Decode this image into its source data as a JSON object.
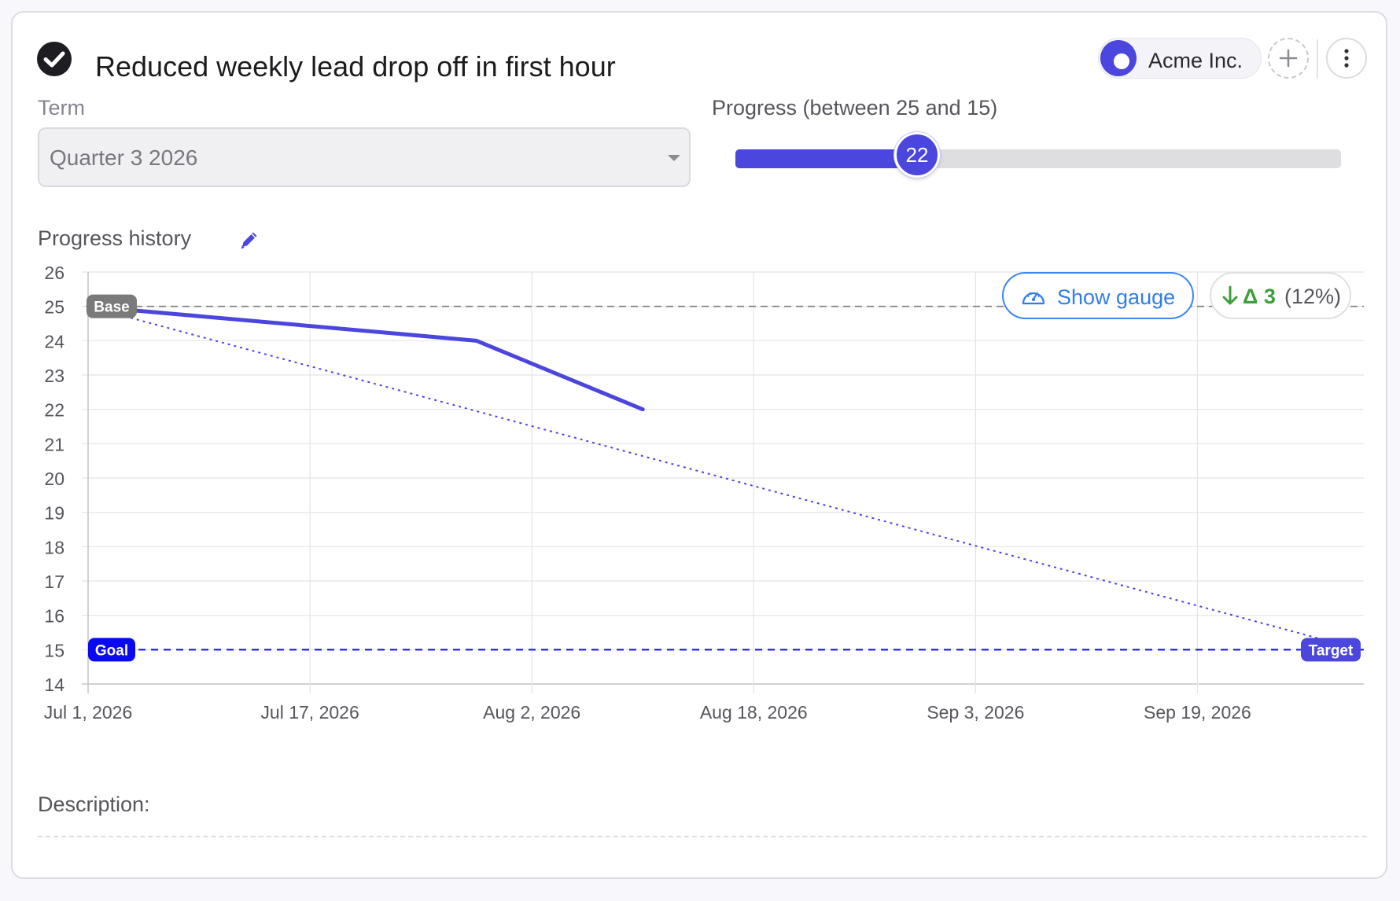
{
  "header": {
    "title": "Reduced weekly lead drop off in first hour",
    "org_name": "Acme Inc."
  },
  "term": {
    "label": "Term",
    "value": "Quarter 3 2026"
  },
  "progress": {
    "label": "Progress (between 25 and 15)",
    "value": 22,
    "value_text": "22",
    "start": 25,
    "goal": 15,
    "fraction_complete": 0.3
  },
  "history": {
    "label": "Progress history",
    "show_gauge_label": "Show gauge",
    "delta_value": "Δ 3",
    "delta_pct": "(12%)"
  },
  "description": {
    "label": "Description:"
  },
  "colors": {
    "accent": "#4b46dd",
    "goal": "#0a0af0",
    "base": "#7a7a7a",
    "link": "#2f7ded",
    "positive": "#3e9e3c"
  },
  "chart_data": {
    "type": "line",
    "x_ticks": [
      "Jul 1, 2026",
      "Jul 17, 2026",
      "Aug 2, 2026",
      "Aug 18, 2026",
      "Sep 3, 2026",
      "Sep 19, 2026"
    ],
    "y_ticks": [
      "26",
      "25",
      "24",
      "23",
      "22",
      "21",
      "20",
      "19",
      "18",
      "17",
      "16",
      "15",
      "14"
    ],
    "ylim": [
      14,
      26
    ],
    "xlim": [
      "2026-07-01",
      "2026-10-01"
    ],
    "series": [
      {
        "x": [
          "2026-07-01",
          "2026-07-29",
          "2026-08-10"
        ],
        "y": [
          25,
          24,
          22
        ]
      }
    ],
    "trend": {
      "x": [
        "2026-07-01",
        "2026-09-28"
      ],
      "y": [
        25,
        15.3
      ]
    },
    "base_line": {
      "y": 25,
      "label": "Base"
    },
    "goal_line": {
      "y": 15,
      "label": "Goal",
      "end_label": "Target"
    },
    "grid": true
  }
}
